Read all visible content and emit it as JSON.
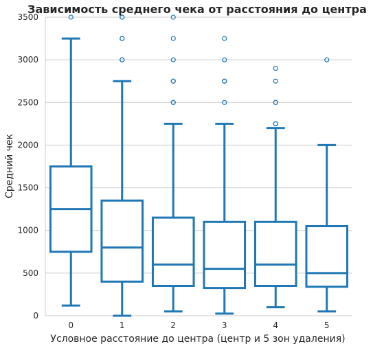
{
  "chart_data": {
    "type": "box",
    "title": "Зависимость среднего чека от расстояния до центра",
    "xlabel": "Условное расстояние до центра (центр и 5 зон удаления)",
    "ylabel": "Средний чек",
    "ylim": [
      0,
      3500
    ],
    "yticks": [
      "0",
      "500",
      "1000",
      "1500",
      "2000",
      "2500",
      "3000",
      "3500"
    ],
    "grid": "horizontal",
    "color": "#1f77b4",
    "categories": [
      "0",
      "1",
      "2",
      "3",
      "4",
      "5"
    ],
    "boxes": [
      {
        "category": "0",
        "whisker_low": 120,
        "q1": 750,
        "median": 1250,
        "q3": 1750,
        "whisker_high": 3250,
        "outliers": [
          3500
        ]
      },
      {
        "category": "1",
        "whisker_low": 0,
        "q1": 400,
        "median": 800,
        "q3": 1350,
        "whisker_high": 2750,
        "outliers": [
          3000,
          3000,
          3250,
          3250,
          3500,
          3500
        ]
      },
      {
        "category": "2",
        "whisker_low": 50,
        "q1": 350,
        "median": 600,
        "q3": 1150,
        "whisker_high": 2250,
        "outliers": [
          2500,
          2500,
          2750,
          2750,
          3000,
          3250,
          3500
        ]
      },
      {
        "category": "3",
        "whisker_low": 25,
        "q1": 325,
        "median": 550,
        "q3": 1100,
        "whisker_high": 2250,
        "outliers": [
          2500,
          2750,
          2750,
          3000,
          3250
        ]
      },
      {
        "category": "4",
        "whisker_low": 100,
        "q1": 350,
        "median": 600,
        "q3": 1100,
        "whisker_high": 2200,
        "outliers": [
          2250,
          2250,
          2500,
          2500,
          2750,
          2900
        ]
      },
      {
        "category": "5",
        "whisker_low": 50,
        "q1": 340,
        "median": 500,
        "q3": 1050,
        "whisker_high": 2000,
        "outliers": [
          3000
        ]
      }
    ]
  }
}
